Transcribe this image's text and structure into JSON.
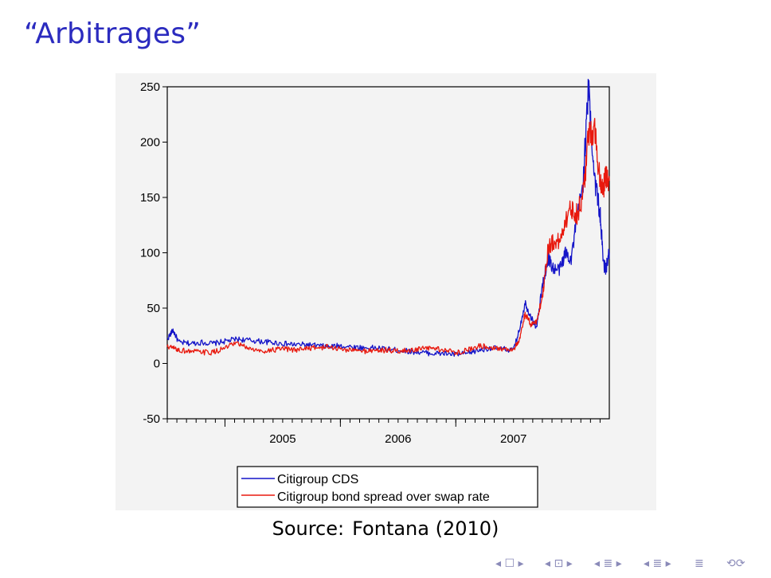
{
  "slide": {
    "title": "“Arbitrages”",
    "caption_prefix": "Source:",
    "caption_ref": "Fontana (2010)"
  },
  "nav": {
    "icons": [
      "nav-first-icon",
      "nav-prev-frame-icon",
      "nav-next-frame-icon",
      "nav-prev-section-icon",
      "nav-next-section-icon",
      "nav-align-icon",
      "nav-search-icon"
    ]
  },
  "chart_data": {
    "type": "line",
    "title": "",
    "xlabel": "",
    "ylabel": "",
    "ylim": [
      -50,
      250
    ],
    "yticks": [
      250,
      200,
      150,
      100,
      50,
      0,
      -50
    ],
    "ytick_labels": [
      "250",
      "200",
      "150",
      "100",
      "50",
      "0",
      "-50"
    ],
    "xlim": [
      2004.0,
      2007.83
    ],
    "xtick_labels": [
      "2005",
      "2006",
      "2007"
    ],
    "xtick_values": [
      2005,
      2006,
      2007
    ],
    "legend_position": "bottom",
    "series": [
      {
        "name": "Citigroup CDS",
        "color": "#1414c8",
        "x": [
          2004.0,
          2004.05,
          2004.1,
          2004.2,
          2004.3,
          2004.4,
          2004.5,
          2004.6,
          2004.7,
          2004.8,
          2004.9,
          2005.0,
          2005.1,
          2005.2,
          2005.3,
          2005.4,
          2005.5,
          2005.6,
          2005.7,
          2005.8,
          2005.9,
          2006.0,
          2006.1,
          2006.2,
          2006.3,
          2006.4,
          2006.5,
          2006.6,
          2006.7,
          2006.8,
          2006.9,
          2007.0,
          2007.05,
          2007.1,
          2007.15,
          2007.2,
          2007.25,
          2007.3,
          2007.35,
          2007.4,
          2007.45,
          2007.5,
          2007.55,
          2007.6,
          2007.65,
          2007.7,
          2007.75,
          2007.78,
          2007.8,
          2007.83
        ],
        "y": [
          22,
          30,
          19,
          18,
          19,
          18,
          20,
          22,
          21,
          20,
          19,
          18,
          17,
          17,
          16,
          15,
          16,
          15,
          14,
          14,
          13,
          12,
          11,
          10,
          9,
          9,
          8,
          9,
          12,
          14,
          13,
          12,
          30,
          55,
          42,
          32,
          70,
          95,
          85,
          85,
          100,
          95,
          130,
          160,
          248,
          170,
          135,
          90,
          85,
          100
        ]
      },
      {
        "name": "Citigroup bond spread over swap rate",
        "color": "#e8190e",
        "x": [
          2004.0,
          2004.05,
          2004.1,
          2004.2,
          2004.3,
          2004.4,
          2004.5,
          2004.6,
          2004.7,
          2004.8,
          2004.9,
          2005.0,
          2005.1,
          2005.2,
          2005.3,
          2005.4,
          2005.5,
          2005.6,
          2005.7,
          2005.8,
          2005.9,
          2006.0,
          2006.1,
          2006.2,
          2006.3,
          2006.4,
          2006.5,
          2006.6,
          2006.7,
          2006.8,
          2006.9,
          2007.0,
          2007.05,
          2007.1,
          2007.15,
          2007.2,
          2007.25,
          2007.3,
          2007.35,
          2007.4,
          2007.45,
          2007.5,
          2007.55,
          2007.6,
          2007.65,
          2007.7,
          2007.75,
          2007.78,
          2007.8,
          2007.83
        ],
        "y": [
          15,
          14,
          12,
          11,
          10,
          10,
          14,
          18,
          14,
          11,
          12,
          13,
          12,
          14,
          14,
          15,
          13,
          12,
          11,
          12,
          12,
          11,
          12,
          13,
          14,
          12,
          10,
          12,
          16,
          15,
          13,
          13,
          20,
          45,
          35,
          38,
          60,
          105,
          110,
          110,
          130,
          140,
          135,
          150,
          205,
          215,
          165,
          160,
          168,
          165
        ]
      }
    ]
  }
}
